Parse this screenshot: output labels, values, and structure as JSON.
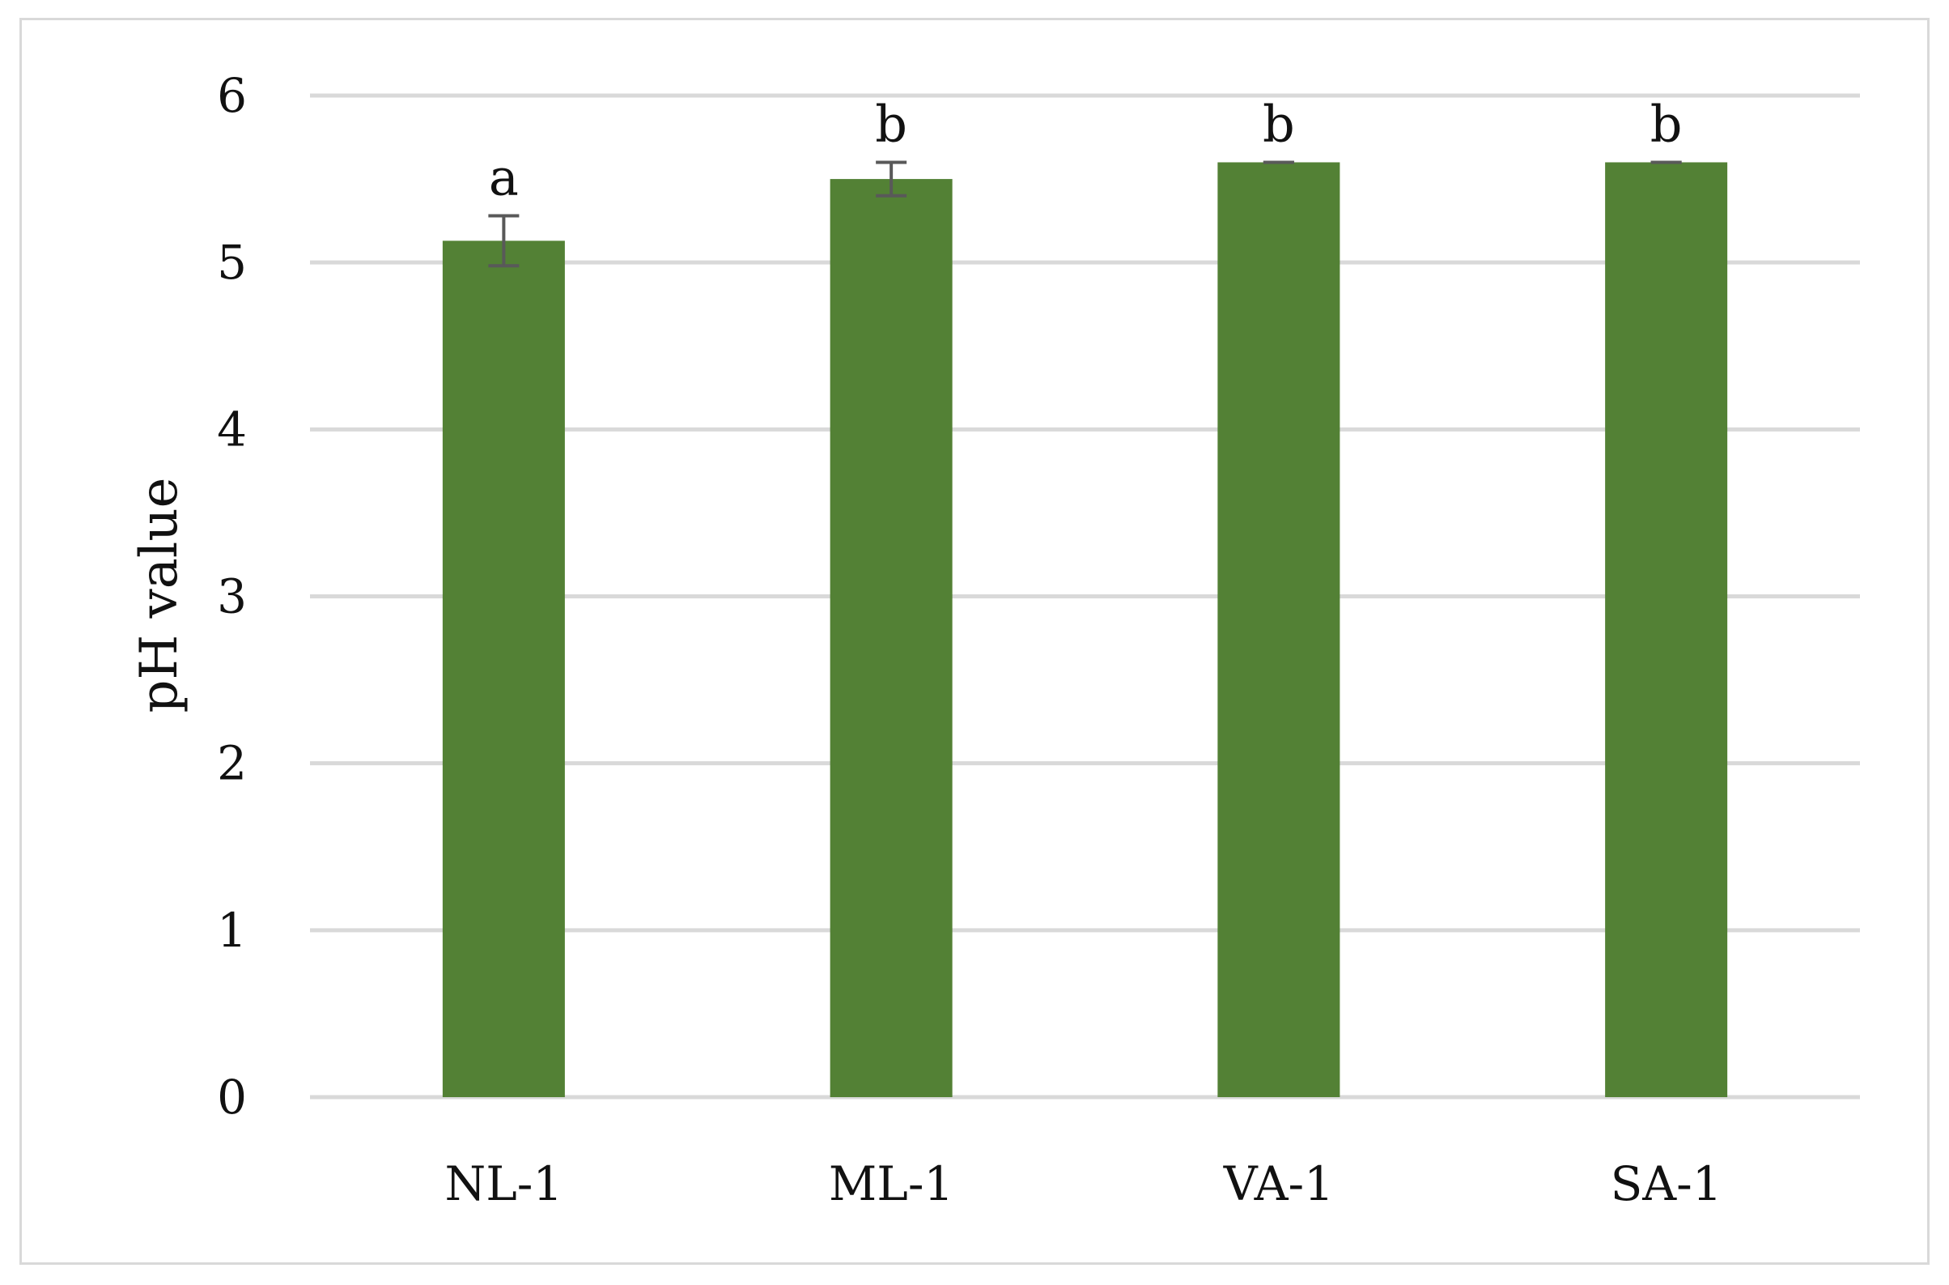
{
  "chart_data": {
    "type": "bar",
    "title": "",
    "xlabel": "",
    "ylabel": "pH value",
    "ylim": [
      0,
      6
    ],
    "yticks": [
      "0",
      "1",
      "2",
      "3",
      "4",
      "5",
      "6"
    ],
    "categories": [
      "NL-1",
      "ML-1",
      "VA-1",
      "SA-1"
    ],
    "series": [
      {
        "values": [
          5.13,
          5.5,
          5.6,
          5.6
        ],
        "errors": [
          0.15,
          0.1,
          0.0,
          0.0
        ],
        "color": "#538135"
      }
    ],
    "annotations": [
      "a",
      "b",
      "b",
      "b"
    ],
    "grid": true,
    "legend": "none",
    "gridline_color": "#d9d9d9",
    "error_bar_color": "#595959"
  }
}
